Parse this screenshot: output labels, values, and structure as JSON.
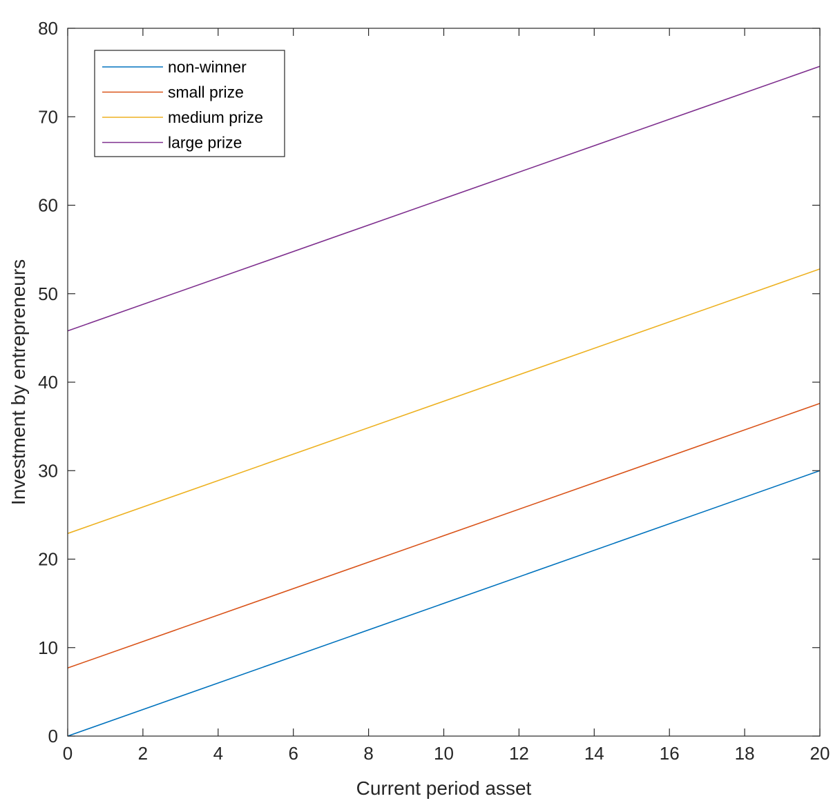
{
  "chart_data": {
    "type": "line",
    "title": "",
    "xlabel": "Current period asset",
    "ylabel": "Investment by entrepreneurs",
    "xlim": [
      0,
      20
    ],
    "ylim": [
      0,
      80
    ],
    "xticks": [
      0,
      2,
      4,
      6,
      8,
      10,
      12,
      14,
      16,
      18,
      20
    ],
    "yticks": [
      0,
      10,
      20,
      30,
      40,
      50,
      60,
      70,
      80
    ],
    "grid": false,
    "legend_position": "top-left",
    "x": [
      0,
      20
    ],
    "series": [
      {
        "name": "non-winner",
        "color": "#0072BD",
        "values": [
          0,
          30
        ]
      },
      {
        "name": "small prize",
        "color": "#D95319",
        "values": [
          7.7,
          37.6
        ]
      },
      {
        "name": "medium prize",
        "color": "#EDB120",
        "values": [
          22.9,
          52.8
        ]
      },
      {
        "name": "large prize",
        "color": "#7E2F8E",
        "values": [
          45.8,
          75.7
        ]
      }
    ]
  }
}
